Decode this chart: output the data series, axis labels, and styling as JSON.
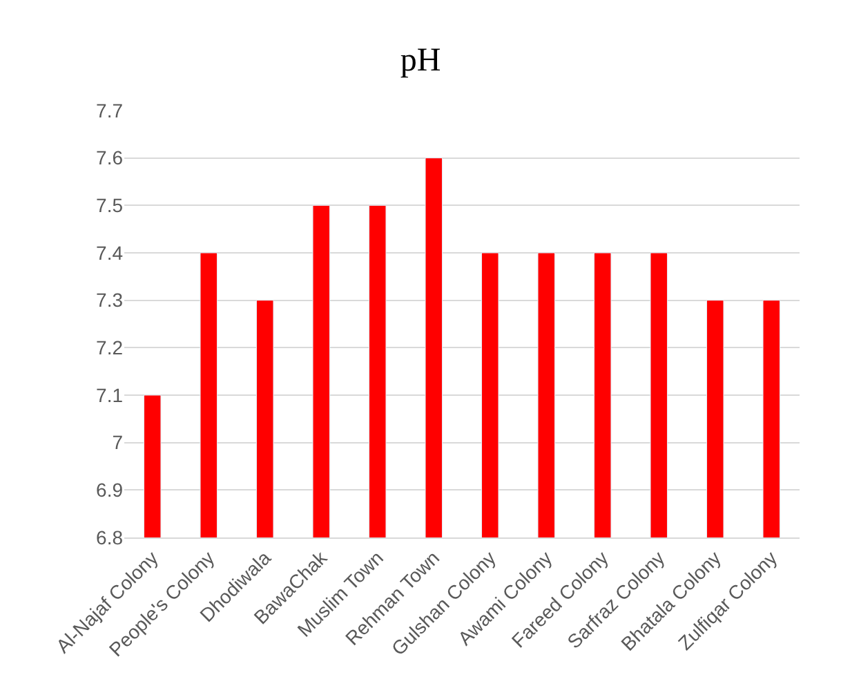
{
  "chart_data": {
    "type": "bar",
    "title": "pH",
    "categories": [
      "Al-Najaf Colony",
      "People's Colony",
      "Dhodiwala",
      "BawaChak",
      "Muslim Town",
      "Rehman Town",
      "Gulshan Colony",
      "Awami Colony",
      "Fareed Colony",
      "Sarfraz Colony",
      "Bhatala Colony",
      "Zulfiqar Colony"
    ],
    "values": [
      7.1,
      7.4,
      7.3,
      7.5,
      7.5,
      7.6,
      7.4,
      7.4,
      7.4,
      7.4,
      7.3,
      7.3
    ],
    "color": "#ff0000",
    "ylim": [
      6.8,
      7.7
    ],
    "yticks": [
      6.8,
      6.9,
      7,
      7.1,
      7.2,
      7.3,
      7.4,
      7.5,
      7.6,
      7.7
    ],
    "grid": "y",
    "legend": false
  }
}
